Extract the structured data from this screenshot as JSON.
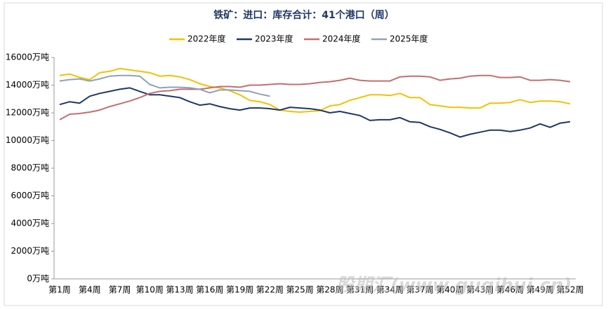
{
  "chart_data": {
    "type": "line",
    "title": "铁矿：进口：库存合计：41个港口（周）",
    "watermark": "股期汇(www.guqihui.cn)",
    "categories": [
      "第1周",
      null,
      null,
      "第4周",
      null,
      null,
      "第7周",
      null,
      null,
      "第10周",
      null,
      null,
      "第13周",
      null,
      null,
      "第16周",
      null,
      null,
      "第19周",
      null,
      null,
      "第22周",
      null,
      null,
      "第25周",
      null,
      null,
      "第28周",
      null,
      null,
      "第31周",
      null,
      null,
      "第34周",
      null,
      null,
      "第37周",
      null,
      null,
      "第40周",
      null,
      null,
      "第43周",
      null,
      null,
      "第46周",
      null,
      null,
      "第49周",
      null,
      null,
      "第52周"
    ],
    "ylim": [
      0,
      16000
    ],
    "yticks": [
      {
        "value": 0,
        "label": "0万吨"
      },
      {
        "value": 2000,
        "label": "2000万吨"
      },
      {
        "value": 4000,
        "label": "4000万吨"
      },
      {
        "value": 6000,
        "label": "6000万吨"
      },
      {
        "value": 8000,
        "label": "8000万吨"
      },
      {
        "value": 10000,
        "label": "10000万吨"
      },
      {
        "value": 12000,
        "label": "12000万吨"
      },
      {
        "value": 14000,
        "label": "14000万吨"
      },
      {
        "value": 16000,
        "label": "16000万吨"
      }
    ],
    "legend": "top",
    "series": [
      {
        "name": "2022年度",
        "color": "#f5c000",
        "values": [
          14700,
          14800,
          14550,
          14400,
          14900,
          15000,
          15200,
          15100,
          15000,
          14900,
          14650,
          14700,
          14600,
          14400,
          14100,
          13900,
          13800,
          13600,
          13300,
          12900,
          12800,
          12600,
          12200,
          12100,
          12050,
          12100,
          12150,
          12500,
          12600,
          12900,
          13100,
          13300,
          13300,
          13250,
          13400,
          13100,
          13100,
          12600,
          12500,
          12400,
          12400,
          12350,
          12350,
          12700,
          12700,
          12750,
          12950,
          12750,
          12850,
          12850,
          12800,
          12650
        ]
      },
      {
        "name": "2023年度",
        "color": "#1f3864",
        "values": [
          12600,
          12800,
          12700,
          13200,
          13400,
          13550,
          13700,
          13800,
          13550,
          13300,
          13300,
          13200,
          13100,
          12800,
          12550,
          12650,
          12450,
          12300,
          12200,
          12350,
          12350,
          12300,
          12200,
          12400,
          12350,
          12300,
          12200,
          12000,
          12100,
          11950,
          11800,
          11450,
          11500,
          11500,
          11650,
          11350,
          11300,
          11000,
          10800,
          10550,
          10250,
          10450,
          10600,
          10750,
          10750,
          10650,
          10750,
          10900,
          11200,
          10950,
          11250,
          11350
        ]
      },
      {
        "name": "2024年度",
        "color": "#c0706e",
        "values": [
          11500,
          11900,
          11950,
          12050,
          12200,
          12450,
          12650,
          12850,
          13100,
          13400,
          13550,
          13600,
          13700,
          13700,
          13700,
          13800,
          13900,
          13900,
          13850,
          14000,
          14000,
          14050,
          14100,
          14050,
          14050,
          14100,
          14200,
          14250,
          14350,
          14500,
          14350,
          14300,
          14300,
          14300,
          14600,
          14650,
          14650,
          14600,
          14350,
          14450,
          14500,
          14650,
          14700,
          14700,
          14550,
          14550,
          14600,
          14350,
          14350,
          14400,
          14350,
          14250
        ]
      },
      {
        "name": "2025年度",
        "color": "#8ea2b8",
        "values": [
          14300,
          14400,
          14450,
          14300,
          14450,
          14650,
          14700,
          14700,
          14650,
          14050,
          13800,
          13850,
          13850,
          13800,
          13700,
          13450,
          13650,
          13650,
          13600,
          13550,
          13350,
          13200,
          null,
          null,
          null,
          null,
          null,
          null,
          null,
          null,
          null,
          null,
          null,
          null,
          null,
          null,
          null,
          null,
          null,
          null,
          null,
          null,
          null,
          null,
          null,
          null,
          null,
          null,
          null,
          null,
          null,
          null
        ]
      }
    ]
  }
}
